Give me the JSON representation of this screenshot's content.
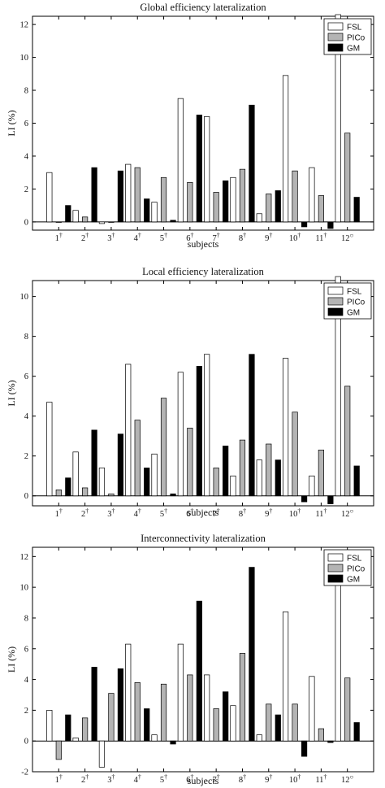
{
  "colors": {
    "FSL": "#ffffff",
    "PICo": "#b4b4b4",
    "GM": "#000000",
    "axis": "#000000"
  },
  "chart_data": [
    {
      "type": "bar",
      "title": "Global efficiency lateralization",
      "xlabel": "subjects",
      "ylabel": "LI (%)",
      "ylim": [
        -0.5,
        12.5
      ],
      "yticks": [
        0,
        2,
        4,
        6,
        8,
        10,
        12
      ],
      "legend_position": "top-right",
      "categories": [
        "1",
        "2",
        "3",
        "4",
        "5",
        "6",
        "7",
        "8",
        "9",
        "10",
        "11",
        "12"
      ],
      "category_marks": [
        "†",
        "†",
        "†",
        "†",
        "†",
        "†",
        "†",
        "†",
        "†",
        "†",
        "†",
        "○"
      ],
      "series": [
        {
          "name": "FSL",
          "values": [
            3.0,
            0.7,
            -0.1,
            3.5,
            1.2,
            7.5,
            6.4,
            2.7,
            0.5,
            8.9,
            3.3,
            12.6
          ]
        },
        {
          "name": "PICo",
          "values": [
            0.0,
            0.3,
            0.0,
            3.3,
            2.7,
            2.4,
            1.8,
            3.2,
            1.7,
            3.1,
            1.6,
            5.4
          ]
        },
        {
          "name": "GM",
          "values": [
            1.0,
            3.3,
            3.1,
            1.4,
            0.1,
            6.5,
            2.5,
            7.1,
            1.9,
            -0.3,
            -0.4,
            1.5
          ]
        }
      ]
    },
    {
      "type": "bar",
      "title": "Local efficiency lateralization",
      "xlabel": "subjects",
      "ylabel": "LI (%)",
      "ylim": [
        -0.5,
        10.8
      ],
      "yticks": [
        0,
        2,
        4,
        6,
        8,
        10
      ],
      "legend_position": "top-right",
      "categories": [
        "1",
        "2",
        "3",
        "4",
        "5",
        "6",
        "7",
        "8",
        "9",
        "10",
        "11",
        "12"
      ],
      "category_marks": [
        "†",
        "†",
        "†",
        "†",
        "†",
        "†",
        "†",
        "†",
        "†",
        "†",
        "†",
        "○"
      ],
      "series": [
        {
          "name": "FSL",
          "values": [
            4.7,
            2.2,
            1.4,
            6.6,
            2.1,
            6.2,
            7.1,
            1.0,
            1.8,
            6.9,
            1.0,
            11.0
          ]
        },
        {
          "name": "PICo",
          "values": [
            0.3,
            0.4,
            0.1,
            3.8,
            4.9,
            3.4,
            1.4,
            2.8,
            2.6,
            4.2,
            2.3,
            5.5
          ]
        },
        {
          "name": "GM",
          "values": [
            0.9,
            3.3,
            3.1,
            1.4,
            0.1,
            6.5,
            2.5,
            7.1,
            1.8,
            -0.3,
            -0.4,
            1.5
          ]
        }
      ]
    },
    {
      "type": "bar",
      "title": "Interconnectivity lateralization",
      "xlabel": "subjects",
      "ylabel": "LI (%)",
      "ylim": [
        -2,
        12.6
      ],
      "yticks": [
        -2,
        0,
        2,
        4,
        6,
        8,
        10,
        12
      ],
      "legend_position": "top-right",
      "categories": [
        "1",
        "2",
        "3",
        "4",
        "5",
        "6",
        "7",
        "8",
        "9",
        "10",
        "11",
        "12"
      ],
      "category_marks": [
        "†",
        "†",
        "†",
        "†",
        "†",
        "†",
        "†",
        "†",
        "†",
        "†",
        "†",
        "○"
      ],
      "series": [
        {
          "name": "FSL",
          "values": [
            2.0,
            0.2,
            -1.7,
            6.3,
            0.4,
            6.3,
            4.3,
            2.3,
            0.4,
            8.4,
            4.2,
            12.3
          ]
        },
        {
          "name": "PICo",
          "values": [
            -1.2,
            1.5,
            3.1,
            3.8,
            3.7,
            4.3,
            2.1,
            5.7,
            2.4,
            2.4,
            0.8,
            4.1
          ]
        },
        {
          "name": "GM",
          "values": [
            1.7,
            4.8,
            4.7,
            2.1,
            -0.2,
            9.1,
            3.2,
            11.3,
            1.7,
            -1.0,
            -0.1,
            1.2
          ]
        }
      ]
    }
  ]
}
